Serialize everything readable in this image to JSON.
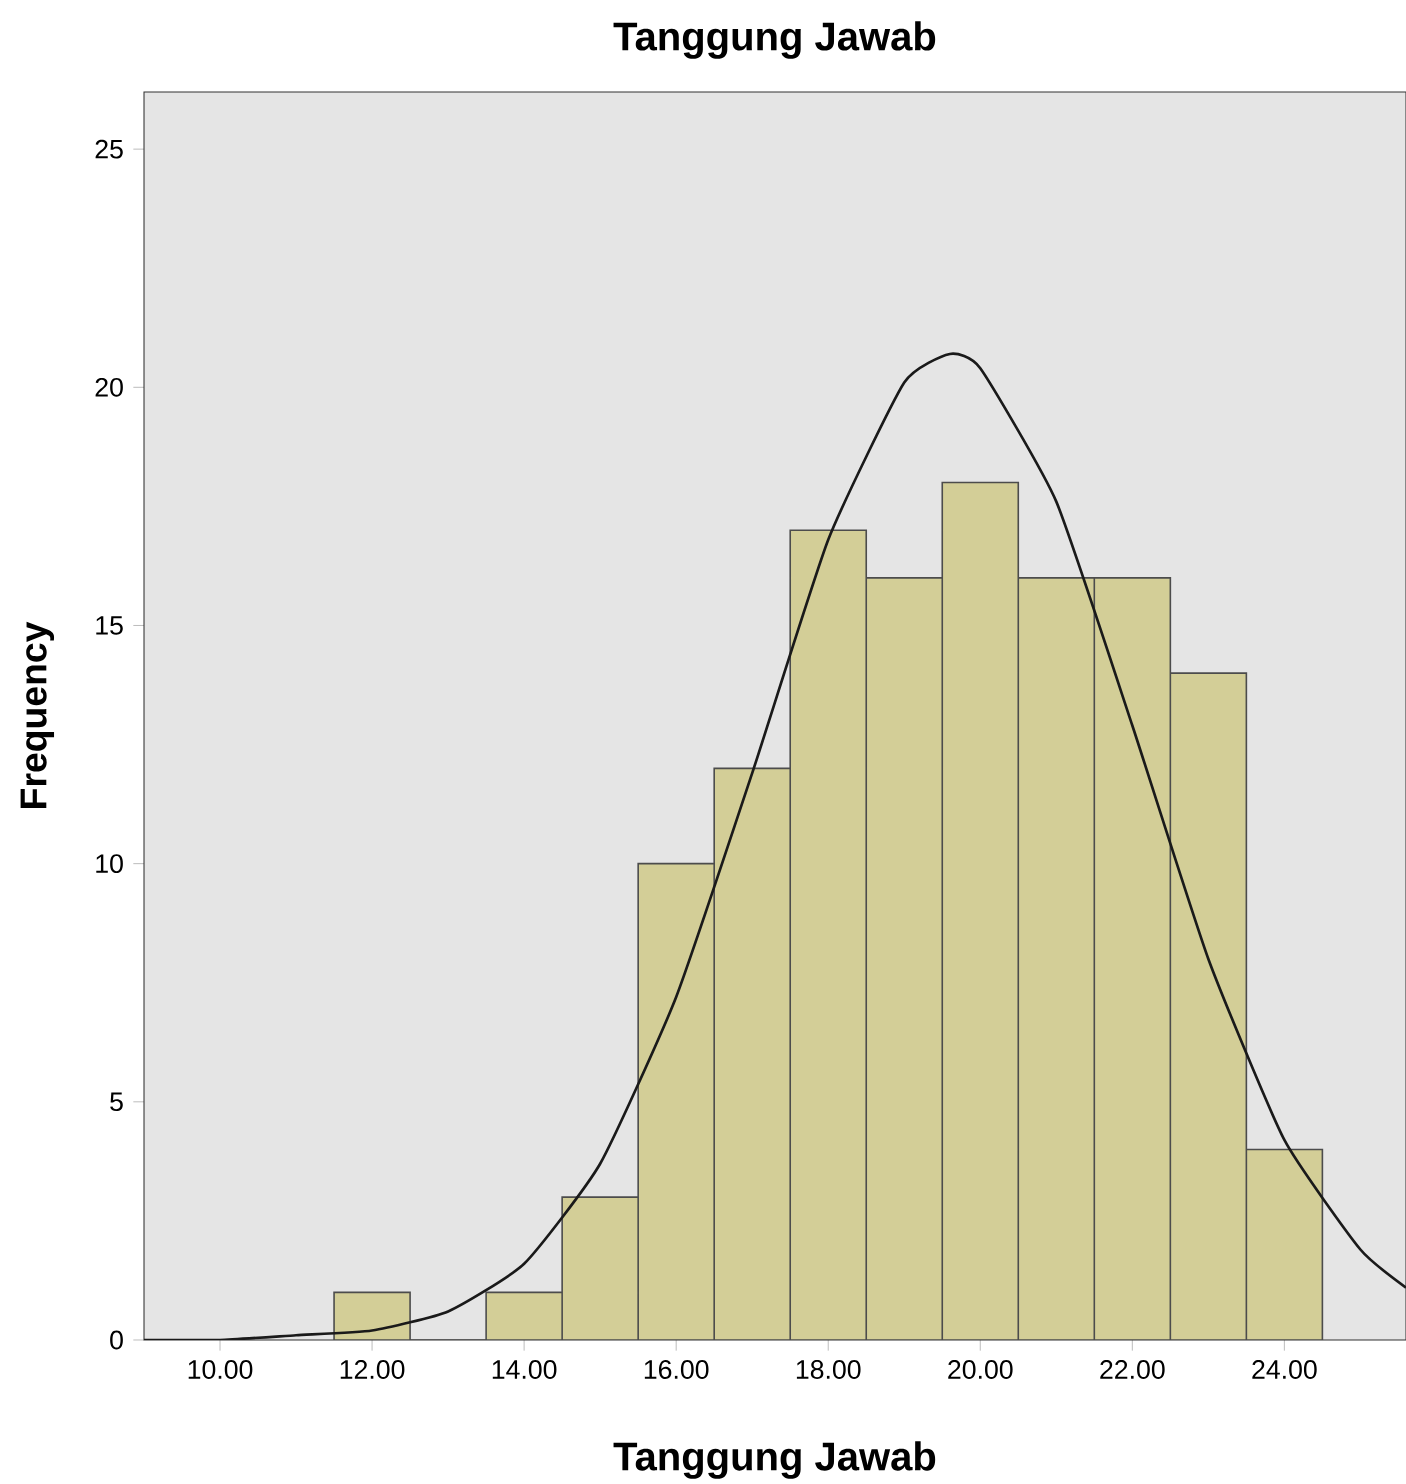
{
  "chart_data": {
    "type": "histogram",
    "title": "Tanggung Jawab",
    "xlabel": "Tanggung Jawab",
    "ylabel": "Frequency",
    "bins": [
      11.5,
      12.5,
      13.5,
      14.5,
      15.5,
      16.5,
      17.5,
      18.5,
      19.5,
      20.5,
      21.5,
      22.5,
      23.5,
      24.5
    ],
    "values": [
      1,
      0,
      1,
      3,
      10,
      12,
      17,
      16,
      18,
      16,
      16,
      14,
      4
    ],
    "color": "#d3ce97",
    "series": [
      {
        "type": "line",
        "color": "#1a1a1a",
        "x": [
          9,
          10,
          11,
          12,
          13,
          14,
          15,
          16,
          17,
          18,
          19,
          19.6,
          20,
          21,
          22,
          23,
          24,
          25,
          25.6
        ],
        "values": [
          0,
          0,
          0.1,
          0.2,
          0.6,
          1.6,
          3.7,
          7.2,
          11.9,
          16.8,
          20.1,
          20.7,
          20.4,
          17.6,
          12.9,
          8,
          4.2,
          1.9,
          1.1
        ]
      }
    ],
    "xlim": [
      9,
      25.6
    ],
    "ylim": [
      0,
      26.2
    ],
    "xticks": [
      {
        "value": 10,
        "label": "10.00"
      },
      {
        "value": 12,
        "label": "12.00"
      },
      {
        "value": 14,
        "label": "14.00"
      },
      {
        "value": 16,
        "label": "16.00"
      },
      {
        "value": 18,
        "label": "18.00"
      },
      {
        "value": 20,
        "label": "20.00"
      },
      {
        "value": 22,
        "label": "22.00"
      },
      {
        "value": 24,
        "label": "24.00"
      }
    ],
    "yticks": [
      0,
      5,
      10,
      15,
      20,
      25
    ],
    "grid": false
  }
}
